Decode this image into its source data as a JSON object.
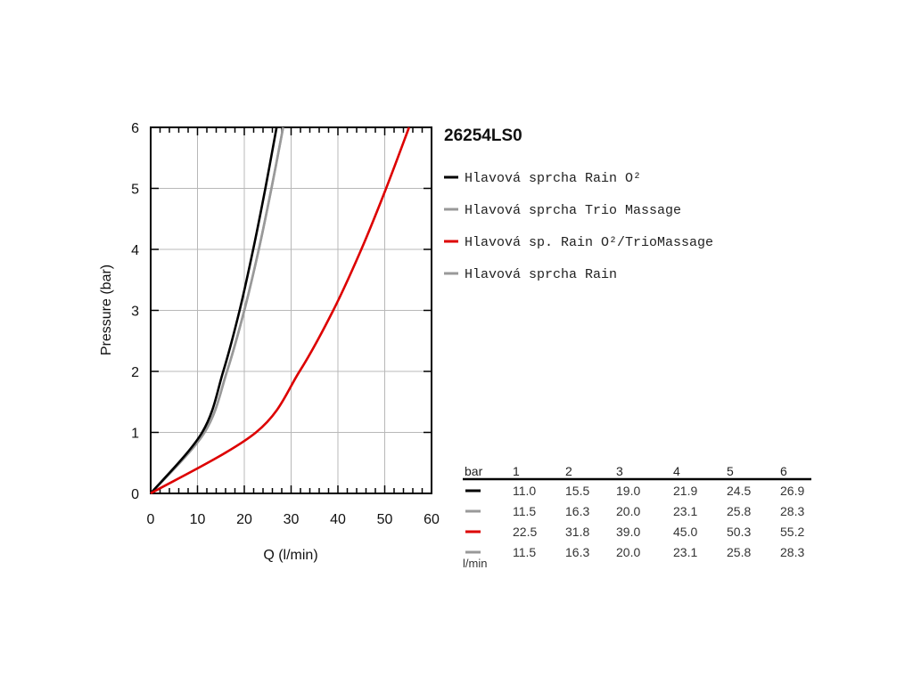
{
  "chart_data": {
    "type": "line",
    "title": "26254LS0",
    "xlabel": "Q (l/min)",
    "ylabel": "Pressure (bar)",
    "xlim": [
      0,
      60
    ],
    "ylim": [
      0,
      6
    ],
    "x_ticks": [
      0,
      10,
      20,
      30,
      40,
      50,
      60
    ],
    "y_ticks": [
      0,
      1,
      2,
      3,
      4,
      5,
      6
    ],
    "x_tick_labels": [
      "0",
      "10",
      "20",
      "30",
      "40",
      "50",
      "60"
    ],
    "y_tick_labels": [
      "0",
      "1",
      "2",
      "3",
      "4",
      "5",
      "6"
    ],
    "grid": true,
    "legend_position": "right",
    "series": [
      {
        "name": "Hlavová sprcha Rain O²",
        "color": "#000000",
        "x": [
          0,
          11.0,
          15.5,
          19.0,
          21.9,
          24.5,
          26.9
        ],
        "y": [
          0,
          1,
          2,
          3,
          4,
          5,
          6
        ]
      },
      {
        "name": "Hlavová sprcha Trio Massage",
        "color": "#999999",
        "x": [
          0,
          11.5,
          16.3,
          20.0,
          23.1,
          25.8,
          28.3
        ],
        "y": [
          0,
          1,
          2,
          3,
          4,
          5,
          6
        ]
      },
      {
        "name": "Hlavová sp. Rain O²/TrioMassage",
        "color": "#dd0000",
        "x": [
          0,
          22.5,
          31.8,
          39.0,
          45.0,
          50.3,
          55.2
        ],
        "y": [
          0,
          1,
          2,
          3,
          4,
          5,
          6
        ]
      },
      {
        "name": "Hlavová sprcha Rain",
        "color": "#999999",
        "x": [
          0,
          11.5,
          16.3,
          20.0,
          23.1,
          25.8,
          28.3
        ],
        "y": [
          0,
          1,
          2,
          3,
          4,
          5,
          6
        ]
      }
    ]
  },
  "table": {
    "header_unit": "bar",
    "footer_unit": "l/min",
    "pressures": [
      "1",
      "2",
      "3",
      "4",
      "5",
      "6"
    ],
    "rows": [
      {
        "color": "#000000",
        "values": [
          "11.0",
          "15.5",
          "19.0",
          "21.9",
          "24.5",
          "26.9"
        ]
      },
      {
        "color": "#999999",
        "values": [
          "11.5",
          "16.3",
          "20.0",
          "23.1",
          "25.8",
          "28.3"
        ]
      },
      {
        "color": "#dd0000",
        "values": [
          "22.5",
          "31.8",
          "39.0",
          "45.0",
          "50.3",
          "55.2"
        ]
      },
      {
        "color": "#999999",
        "values": [
          "11.5",
          "16.3",
          "20.0",
          "23.1",
          "25.8",
          "28.3"
        ]
      }
    ]
  }
}
